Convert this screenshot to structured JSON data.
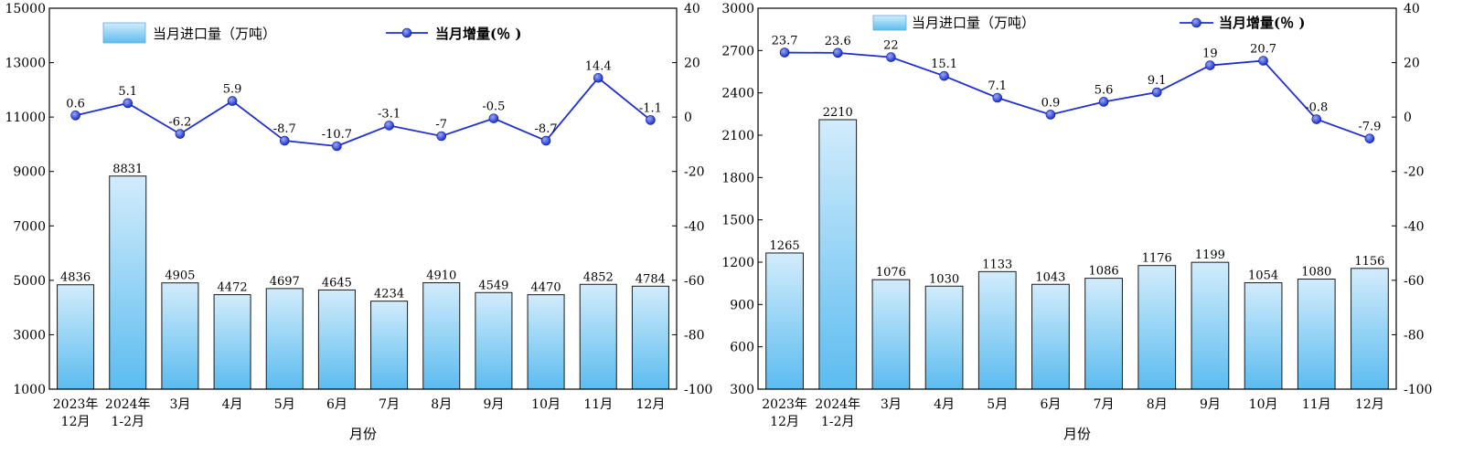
{
  "chart_data": [
    {
      "type": "bar+line",
      "categories": [
        "2023年\n12月",
        "2024年\n1-2月",
        "3月",
        "4月",
        "5月",
        "6月",
        "7月",
        "8月",
        "9月",
        "10月",
        "11月",
        "12月"
      ],
      "series": [
        {
          "name": "当月进口量（万吨）",
          "kind": "bar",
          "axis": "left",
          "values": [
            4836,
            8831,
            4905,
            4472,
            4697,
            4645,
            4234,
            4910,
            4549,
            4470,
            4852,
            4784
          ]
        },
        {
          "name": "当月增量(％ )",
          "kind": "line",
          "axis": "right",
          "values": [
            0.6,
            5.1,
            -6.2,
            5.9,
            -8.7,
            -10.7,
            -3.1,
            -7,
            -0.5,
            -8.7,
            14.4,
            -1.1
          ]
        }
      ],
      "xlabel": "月份",
      "ylim_left": [
        1000,
        15000
      ],
      "yticks_left": [
        1000,
        3000,
        5000,
        7000,
        9000,
        11000,
        13000,
        15000
      ],
      "ylim_right": [
        -100,
        40
      ],
      "yticks_right": [
        -100,
        -80,
        -60,
        -40,
        -20,
        0,
        20,
        40
      ],
      "legend_position": "top"
    },
    {
      "type": "bar+line",
      "categories": [
        "2023年\n12月",
        "2024年\n1-2月",
        "3月",
        "4月",
        "5月",
        "6月",
        "7月",
        "8月",
        "9月",
        "10月",
        "11月",
        "12月"
      ],
      "series": [
        {
          "name": "当月进口量（万吨）",
          "kind": "bar",
          "axis": "left",
          "values": [
            1265,
            2210,
            1076,
            1030,
            1133,
            1043,
            1086,
            1176,
            1199,
            1054,
            1080,
            1156
          ]
        },
        {
          "name": "当月增量(％ )",
          "kind": "line",
          "axis": "right",
          "values": [
            23.7,
            23.6,
            22,
            15.1,
            7.1,
            0.9,
            5.6,
            9.1,
            19,
            20.7,
            -0.8,
            -7.9
          ]
        }
      ],
      "xlabel": "月份",
      "ylim_left": [
        300,
        3000
      ],
      "yticks_left": [
        300,
        600,
        900,
        1200,
        1500,
        1800,
        2100,
        2400,
        2700,
        3000
      ],
      "ylim_right": [
        -100,
        40
      ],
      "yticks_right": [
        -100,
        -80,
        -60,
        -40,
        -20,
        0,
        20,
        40
      ],
      "legend_position": "top"
    }
  ],
  "colors": {
    "bar_top": "#d2ecfb",
    "bar_bottom": "#5cbcf0",
    "bar_stroke": "#1a1a1a",
    "line": "#1f2fd0",
    "marker": "#1830c8",
    "axis": "#000000"
  }
}
